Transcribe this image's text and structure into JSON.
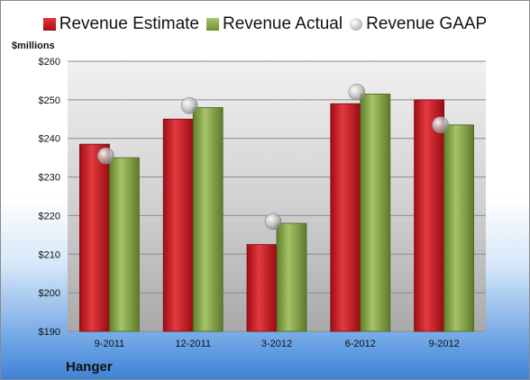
{
  "chart_data": {
    "type": "bar",
    "unit_label": "$millions",
    "categories": [
      "9-2011",
      "12-2011",
      "3-2012",
      "6-2012",
      "9-2012"
    ],
    "series": [
      {
        "name": "Revenue Estimate",
        "kind": "bar",
        "color": "#c8161e",
        "values": [
          238.5,
          245.0,
          212.5,
          249.0,
          250.0
        ]
      },
      {
        "name": "Revenue Actual",
        "kind": "bar",
        "color": "#8aab4b",
        "values": [
          235.0,
          248.0,
          218.0,
          251.5,
          243.5
        ]
      },
      {
        "name": "Revenue GAAP",
        "kind": "point",
        "color": "#b8b8b8",
        "values": [
          235.5,
          248.5,
          218.5,
          252.0,
          243.5
        ]
      }
    ],
    "ylim": [
      190,
      260
    ],
    "yticks": [
      "$190",
      "$200",
      "$210",
      "$220",
      "$230",
      "$240",
      "$250",
      "$260"
    ],
    "ytick_values": [
      190,
      200,
      210,
      220,
      230,
      240,
      250,
      260
    ],
    "legend_position": "top",
    "grid": true
  },
  "footer": {
    "company": "Hanger"
  }
}
